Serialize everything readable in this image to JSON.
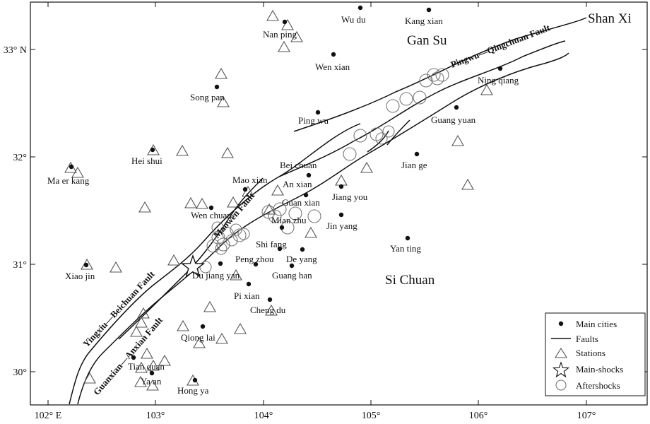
{
  "axes": {
    "x_ticks": [
      "102° E",
      "103°",
      "104°",
      "105°",
      "106°",
      "107°"
    ],
    "y_ticks": [
      "33° N",
      "32°",
      "31°",
      "30°"
    ]
  },
  "regions": {
    "gansu": "Gan Su",
    "shanxi": "Shan Xi",
    "sichuan": "Si Chuan"
  },
  "faults": {
    "pingwu": "Pingwu—Qingchuan Fault",
    "maowen": "Maowen Fault",
    "yingxiu": "Yingxiu—Beichuan Fault",
    "guanxian": "Guanxian—Anxian Fault"
  },
  "cities": [
    {
      "name": "Wu du"
    },
    {
      "name": "Kang xian"
    },
    {
      "name": "Nan ping"
    },
    {
      "name": "Wen xian"
    },
    {
      "name": "Ning qiang"
    },
    {
      "name": "Song pan"
    },
    {
      "name": "Ping wu"
    },
    {
      "name": "Guang yuan"
    },
    {
      "name": "Hei shui"
    },
    {
      "name": "Ma er kang"
    },
    {
      "name": "Bei chuan"
    },
    {
      "name": "An xian"
    },
    {
      "name": "Jian ge"
    },
    {
      "name": "Mao xian"
    },
    {
      "name": "Jiang you"
    },
    {
      "name": "Guan xian"
    },
    {
      "name": "Wen chuan"
    },
    {
      "name": "Mian zhu"
    },
    {
      "name": "Jin yang"
    },
    {
      "name": "Shi fang"
    },
    {
      "name": "Yan ting"
    },
    {
      "name": "Peng zhou"
    },
    {
      "name": "De yang"
    },
    {
      "name": "Xiao jin"
    },
    {
      "name": "Du jiang yan"
    },
    {
      "name": "Guang han"
    },
    {
      "name": "Pi xian"
    },
    {
      "name": "Cheng du"
    },
    {
      "name": "Qiong lai"
    },
    {
      "name": "Tian quan"
    },
    {
      "name": "Ya an"
    },
    {
      "name": "Hong ya"
    }
  ],
  "legend": {
    "cities": "Main cities",
    "faults": "Faults",
    "stations": "Stations",
    "mainshocks": "Main-shocks",
    "aftershocks": "Aftershocks"
  },
  "colors": {
    "ink": "#111111",
    "station": "#555555",
    "aftershock": "#777777",
    "background": "#ffffff"
  }
}
